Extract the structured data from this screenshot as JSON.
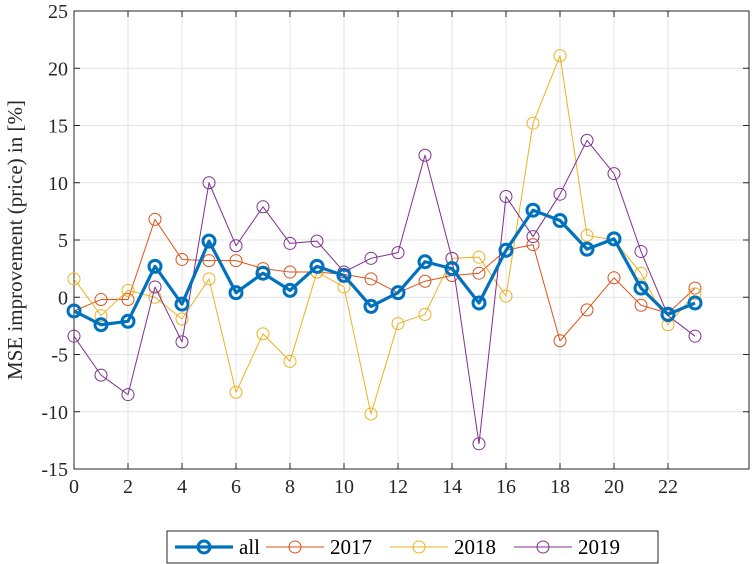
{
  "chart_data": {
    "type": "line",
    "title": "",
    "xlabel": "",
    "ylabel": "MSE improvement (price) in [%]",
    "xlim": [
      0,
      25
    ],
    "ylim": [
      -15,
      25
    ],
    "xticks": [
      0,
      2,
      4,
      6,
      8,
      10,
      12,
      14,
      16,
      18,
      20,
      22
    ],
    "xtick_labels": [
      "0",
      "2",
      "4",
      "6",
      "8",
      "10",
      "12",
      "14",
      "16",
      "18",
      "20",
      "22"
    ],
    "yticks": [
      -15,
      -10,
      -5,
      0,
      5,
      10,
      15,
      20,
      25
    ],
    "ytick_labels": [
      "-15",
      "-10",
      "-5",
      "0",
      "5",
      "10",
      "15",
      "20",
      "25"
    ],
    "grid": true,
    "legend_position": "bottom-outside",
    "x": [
      0,
      1,
      2,
      3,
      4,
      5,
      6,
      7,
      8,
      9,
      10,
      11,
      12,
      13,
      14,
      15,
      16,
      17,
      18,
      19,
      20,
      21,
      22,
      23
    ],
    "series": [
      {
        "name": "all",
        "color": "#0072BD",
        "emphasis": true,
        "values": [
          -1.2,
          -2.4,
          -2.1,
          2.7,
          -0.6,
          4.9,
          0.4,
          2.1,
          0.6,
          2.7,
          1.9,
          -0.8,
          0.4,
          3.1,
          2.5,
          -0.5,
          4.1,
          7.6,
          6.7,
          4.2,
          5.1,
          0.8,
          -1.5,
          -0.5
        ]
      },
      {
        "name": "2017",
        "color": "#D95319",
        "values": [
          -1.2,
          -0.2,
          -0.2,
          6.8,
          3.3,
          3.2,
          3.2,
          2.5,
          2.2,
          2.2,
          2.0,
          1.6,
          0.4,
          1.4,
          1.9,
          2.1,
          4.1,
          4.6,
          -3.8,
          -1.1,
          1.7,
          -0.7,
          -1.4,
          0.8
        ]
      },
      {
        "name": "2018",
        "color": "#EDB120",
        "values": [
          1.6,
          -1.6,
          0.6,
          0.0,
          -1.9,
          1.6,
          -8.3,
          -3.2,
          -5.6,
          2.2,
          0.9,
          -10.2,
          -2.3,
          -1.5,
          3.4,
          3.5,
          0.1,
          15.2,
          21.1,
          5.4,
          5.0,
          2.1,
          -2.4,
          0.3
        ]
      },
      {
        "name": "2019",
        "color": "#7E2F8E",
        "values": [
          -3.4,
          -6.8,
          -8.5,
          0.9,
          -3.9,
          10.0,
          4.5,
          7.9,
          4.7,
          4.9,
          2.2,
          3.4,
          3.9,
          12.4,
          3.4,
          -12.8,
          8.8,
          5.3,
          9.0,
          13.7,
          10.8,
          4.0,
          -1.6,
          -3.4
        ]
      }
    ]
  }
}
